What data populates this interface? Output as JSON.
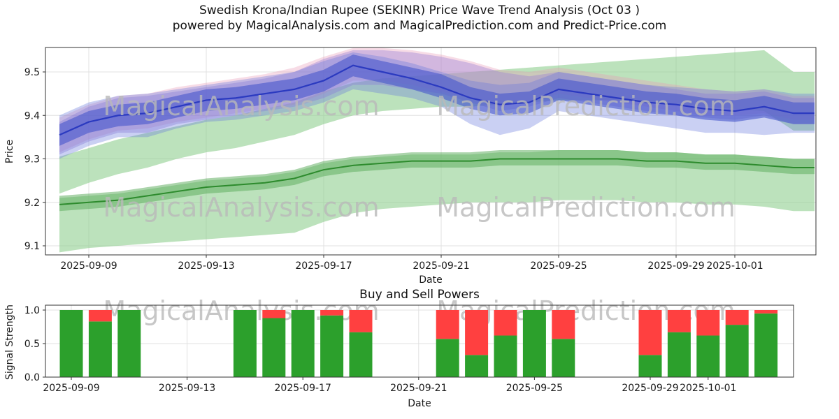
{
  "header": {
    "title": "Swedish Krona/Indian Rupee (SEKINR) Price Wave Trend Analysis (Oct 03 )",
    "subtitle": "powered by MagicalAnalysis.com and MagicalPrediction.com and Predict-Price.com"
  },
  "watermarks": {
    "left": "MagicalAnalysis.com",
    "right": "MagicalPrediction.com"
  },
  "colors": {
    "grid": "#e0e0e0",
    "frame": "#333333",
    "tick_text": "#1a1a1a",
    "watermark": "#b9b9b9"
  },
  "chart_data": [
    {
      "id": "price",
      "type": "area",
      "title": "",
      "xlabel": "Date",
      "ylabel": "Price",
      "ylim": [
        9.08,
        9.56
      ],
      "yticks": [
        9.1,
        9.2,
        9.3,
        9.4,
        9.5
      ],
      "xticks": [
        "2025-09-09",
        "2025-09-13",
        "2025-09-17",
        "2025-09-21",
        "2025-09-25",
        "2025-09-29",
        "2025-10-01"
      ],
      "grid": true,
      "dates": [
        "2025-09-08",
        "2025-09-09",
        "2025-09-10",
        "2025-09-11",
        "2025-09-12",
        "2025-09-13",
        "2025-09-14",
        "2025-09-15",
        "2025-09-16",
        "2025-09-17",
        "2025-09-18",
        "2025-09-19",
        "2025-09-20",
        "2025-09-21",
        "2025-09-22",
        "2025-09-23",
        "2025-09-24",
        "2025-09-25",
        "2025-09-26",
        "2025-09-27",
        "2025-09-28",
        "2025-09-29",
        "2025-09-30",
        "2025-10-01",
        "2025-10-02",
        "2025-10-03"
      ],
      "bands": [
        {
          "name": "green-upper-forecast-band",
          "color": "#8fcf8f",
          "opacity": 0.6,
          "lower": [
            9.22,
            9.245,
            9.265,
            9.28,
            9.3,
            9.315,
            9.325,
            9.34,
            9.355,
            9.38,
            9.4,
            9.41,
            9.415,
            9.42,
            9.42,
            9.425,
            9.43,
            9.435,
            9.435,
            9.435,
            9.43,
            9.425,
            9.42,
            9.415,
            9.41,
            9.365
          ],
          "upper": [
            9.305,
            9.325,
            9.345,
            9.36,
            9.375,
            9.39,
            9.4,
            9.415,
            9.43,
            9.455,
            9.475,
            9.485,
            9.49,
            9.495,
            9.5,
            9.505,
            9.51,
            9.515,
            9.52,
            9.525,
            9.53,
            9.535,
            9.54,
            9.545,
            9.55,
            9.5
          ]
        },
        {
          "name": "green-lower-forecast-band",
          "color": "#8fcf8f",
          "opacity": 0.6,
          "lower": [
            9.085,
            9.095,
            9.1,
            9.105,
            9.11,
            9.115,
            9.12,
            9.125,
            9.13,
            9.155,
            9.175,
            9.185,
            9.19,
            9.195,
            9.2,
            9.2,
            9.2,
            9.205,
            9.205,
            9.205,
            9.2,
            9.2,
            9.195,
            9.195,
            9.19,
            9.18
          ],
          "upper": [
            9.21,
            9.215,
            9.22,
            9.23,
            9.24,
            9.25,
            9.255,
            9.26,
            9.27,
            9.29,
            9.3,
            9.305,
            9.31,
            9.31,
            9.31,
            9.315,
            9.315,
            9.32,
            9.32,
            9.32,
            9.315,
            9.315,
            9.31,
            9.31,
            9.305,
            9.3
          ]
        },
        {
          "name": "green-core-band",
          "color": "#57a957",
          "opacity": 0.5,
          "lower": [
            9.18,
            9.185,
            9.19,
            9.2,
            9.21,
            9.22,
            9.225,
            9.23,
            9.24,
            9.26,
            9.27,
            9.275,
            9.28,
            9.28,
            9.28,
            9.285,
            9.285,
            9.285,
            9.285,
            9.285,
            9.28,
            9.28,
            9.275,
            9.275,
            9.27,
            9.265
          ],
          "upper": [
            9.215,
            9.22,
            9.225,
            9.235,
            9.245,
            9.255,
            9.26,
            9.265,
            9.275,
            9.295,
            9.305,
            9.31,
            9.315,
            9.315,
            9.315,
            9.32,
            9.32,
            9.32,
            9.32,
            9.32,
            9.315,
            9.315,
            9.31,
            9.31,
            9.305,
            9.3
          ]
        },
        {
          "name": "pink-wave-band",
          "color": "#e89cb8",
          "opacity": 0.35,
          "lower": [
            9.315,
            9.345,
            9.365,
            9.37,
            9.385,
            9.395,
            9.405,
            9.415,
            9.425,
            9.45,
            9.48,
            9.48,
            9.47,
            9.455,
            9.44,
            9.42,
            9.43,
            9.45,
            9.44,
            9.43,
            9.42,
            9.41,
            9.4,
            9.4,
            9.405,
            9.39
          ],
          "upper": [
            9.395,
            9.425,
            9.445,
            9.45,
            9.465,
            9.475,
            9.485,
            9.495,
            9.51,
            9.535,
            9.555,
            9.555,
            9.55,
            9.54,
            9.525,
            9.505,
            9.5,
            9.51,
            9.5,
            9.49,
            9.48,
            9.47,
            9.46,
            9.455,
            9.46,
            9.445
          ]
        },
        {
          "name": "purple-wave-band",
          "color": "#9b7fd4",
          "opacity": 0.4,
          "lower": [
            9.31,
            9.34,
            9.36,
            9.36,
            9.38,
            9.39,
            9.4,
            9.41,
            9.42,
            9.44,
            9.47,
            9.47,
            9.46,
            9.45,
            9.43,
            9.41,
            9.42,
            9.44,
            9.43,
            9.42,
            9.41,
            9.4,
            9.395,
            9.39,
            9.4,
            9.38
          ],
          "upper": [
            9.385,
            9.42,
            9.44,
            9.445,
            9.455,
            9.465,
            9.475,
            9.485,
            9.5,
            9.53,
            9.55,
            9.55,
            9.545,
            9.535,
            9.52,
            9.5,
            9.49,
            9.5,
            9.49,
            9.48,
            9.47,
            9.46,
            9.45,
            9.45,
            9.455,
            9.44
          ]
        },
        {
          "name": "blue-outer-wave-band",
          "color": "#6677dd",
          "opacity": 0.35,
          "lower": [
            9.3,
            9.33,
            9.35,
            9.35,
            9.37,
            9.385,
            9.39,
            9.4,
            9.41,
            9.43,
            9.46,
            9.45,
            9.44,
            9.42,
            9.38,
            9.355,
            9.37,
            9.41,
            9.4,
            9.39,
            9.38,
            9.37,
            9.36,
            9.36,
            9.355,
            9.36
          ],
          "upper": [
            9.4,
            9.43,
            9.445,
            9.45,
            9.46,
            9.47,
            9.48,
            9.49,
            9.5,
            9.525,
            9.545,
            9.535,
            9.52,
            9.5,
            9.48,
            9.47,
            9.475,
            9.5,
            9.49,
            9.48,
            9.47,
            9.465,
            9.46,
            9.455,
            9.46,
            9.45
          ]
        },
        {
          "name": "blue-inner-wave-band",
          "color": "#4656cc",
          "opacity": 0.6,
          "lower": [
            9.33,
            9.36,
            9.375,
            9.38,
            9.395,
            9.41,
            9.415,
            9.425,
            9.435,
            9.455,
            9.49,
            9.475,
            9.46,
            9.44,
            9.415,
            9.4,
            9.405,
            9.435,
            9.425,
            9.415,
            9.405,
            9.4,
            9.39,
            9.385,
            9.395,
            9.38
          ],
          "upper": [
            9.38,
            9.41,
            9.425,
            9.43,
            9.445,
            9.46,
            9.465,
            9.475,
            9.485,
            9.505,
            9.54,
            9.525,
            9.51,
            9.495,
            9.465,
            9.45,
            9.455,
            9.485,
            9.475,
            9.465,
            9.455,
            9.45,
            9.44,
            9.435,
            9.445,
            9.43
          ]
        }
      ],
      "lines": [
        {
          "name": "green-trend-line",
          "color": "#2d8b2d",
          "width": 2,
          "values": [
            9.195,
            9.2,
            9.205,
            9.215,
            9.225,
            9.235,
            9.24,
            9.245,
            9.255,
            9.275,
            9.285,
            9.29,
            9.295,
            9.295,
            9.295,
            9.3,
            9.3,
            9.3,
            9.3,
            9.3,
            9.295,
            9.295,
            9.29,
            9.29,
            9.285,
            9.28
          ]
        },
        {
          "name": "blue-trend-line",
          "color": "#2b3ac0",
          "width": 2.2,
          "values": [
            9.355,
            9.385,
            9.4,
            9.405,
            9.42,
            9.435,
            9.44,
            9.45,
            9.46,
            9.48,
            9.515,
            9.5,
            9.485,
            9.465,
            9.44,
            9.425,
            9.43,
            9.46,
            9.45,
            9.44,
            9.43,
            9.425,
            9.415,
            9.41,
            9.42,
            9.405
          ]
        }
      ]
    },
    {
      "id": "signals",
      "type": "bar",
      "title": "Buy and Sell Powers",
      "xlabel": "Date",
      "ylabel": "Signal Strength",
      "ylim": [
        0,
        1.07
      ],
      "yticks": [
        0.0,
        0.5,
        1.0
      ],
      "x_start": "2025-09-08",
      "xticks": [
        "2025-09-09",
        "2025-09-13",
        "2025-09-17",
        "2025-09-21",
        "2025-09-25",
        "2025-09-29",
        "2025-10-01"
      ],
      "series": [
        {
          "name": "Buy",
          "color": "#2ca02c"
        },
        {
          "name": "Sell",
          "color": "#ff4040"
        }
      ],
      "bars": [
        {
          "date": "2025-09-09",
          "buy": 1.0,
          "sell": 0.0
        },
        {
          "date": "2025-09-10",
          "buy": 0.83,
          "sell": 0.17
        },
        {
          "date": "2025-09-11",
          "buy": 1.0,
          "sell": 0.0
        },
        {
          "date": "2025-09-15",
          "buy": 1.0,
          "sell": 0.0
        },
        {
          "date": "2025-09-16",
          "buy": 0.88,
          "sell": 0.12
        },
        {
          "date": "2025-09-17",
          "buy": 1.0,
          "sell": 0.0
        },
        {
          "date": "2025-09-18",
          "buy": 0.92,
          "sell": 0.08
        },
        {
          "date": "2025-09-19",
          "buy": 0.67,
          "sell": 0.33
        },
        {
          "date": "2025-09-22",
          "buy": 0.57,
          "sell": 0.43
        },
        {
          "date": "2025-09-23",
          "buy": 0.33,
          "sell": 0.67
        },
        {
          "date": "2025-09-24",
          "buy": 0.62,
          "sell": 0.38
        },
        {
          "date": "2025-09-25",
          "buy": 1.0,
          "sell": 0.0
        },
        {
          "date": "2025-09-26",
          "buy": 0.57,
          "sell": 0.43
        },
        {
          "date": "2025-09-29",
          "buy": 0.33,
          "sell": 0.67
        },
        {
          "date": "2025-09-30",
          "buy": 0.67,
          "sell": 0.33
        },
        {
          "date": "2025-10-01",
          "buy": 0.62,
          "sell": 0.38
        },
        {
          "date": "2025-10-02",
          "buy": 0.78,
          "sell": 0.22
        },
        {
          "date": "2025-10-03",
          "buy": 0.95,
          "sell": 0.05
        }
      ]
    }
  ]
}
